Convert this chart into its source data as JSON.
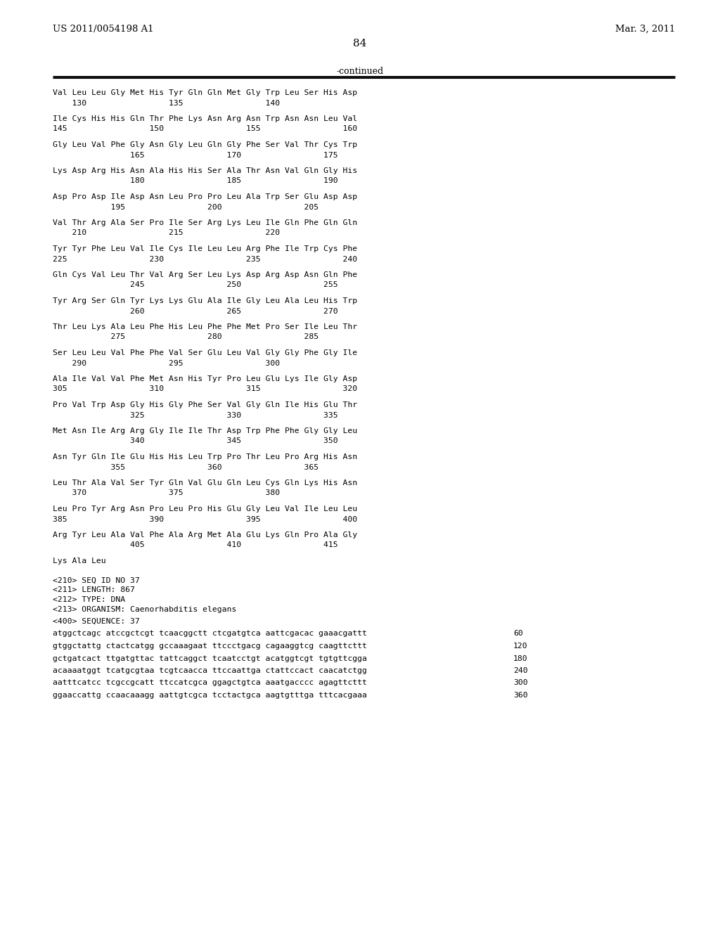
{
  "header_left": "US 2011/0054198 A1",
  "header_right": "Mar. 3, 2011",
  "page_number": "84",
  "continued_label": "-continued",
  "background_color": "#ffffff",
  "text_color": "#000000",
  "content_blocks": [
    {
      "seq": "Val Leu Leu Gly Met His Tyr Gln Gln Met Gly Trp Leu Ser His Asp",
      "num": "    130                 135                 140"
    },
    {
      "seq": "Ile Cys His His Gln Thr Phe Lys Asn Arg Asn Trp Asn Asn Leu Val",
      "num": "145                 150                 155                 160"
    },
    {
      "seq": "Gly Leu Val Phe Gly Asn Gly Leu Gln Gly Phe Ser Val Thr Cys Trp",
      "num": "                165                 170                 175"
    },
    {
      "seq": "Lys Asp Arg His Asn Ala His His Ser Ala Thr Asn Val Gln Gly His",
      "num": "                180                 185                 190"
    },
    {
      "seq": "Asp Pro Asp Ile Asp Asn Leu Pro Pro Leu Ala Trp Ser Glu Asp Asp",
      "num": "            195                 200                 205"
    },
    {
      "seq": "Val Thr Arg Ala Ser Pro Ile Ser Arg Lys Leu Ile Gln Phe Gln Gln",
      "num": "    210                 215                 220"
    },
    {
      "seq": "Tyr Tyr Phe Leu Val Ile Cys Ile Leu Leu Arg Phe Ile Trp Cys Phe",
      "num": "225                 230                 235                 240"
    },
    {
      "seq": "Gln Cys Val Leu Thr Val Arg Ser Leu Lys Asp Arg Asp Asn Gln Phe",
      "num": "                245                 250                 255"
    },
    {
      "seq": "Tyr Arg Ser Gln Tyr Lys Lys Glu Ala Ile Gly Leu Ala Leu His Trp",
      "num": "                260                 265                 270"
    },
    {
      "seq": "Thr Leu Lys Ala Leu Phe His Leu Phe Phe Met Pro Ser Ile Leu Thr",
      "num": "            275                 280                 285"
    },
    {
      "seq": "Ser Leu Leu Val Phe Phe Val Ser Glu Leu Val Gly Gly Phe Gly Ile",
      "num": "    290                 295                 300"
    },
    {
      "seq": "Ala Ile Val Val Phe Met Asn His Tyr Pro Leu Glu Lys Ile Gly Asp",
      "num": "305                 310                 315                 320"
    },
    {
      "seq": "Pro Val Trp Asp Gly His Gly Phe Ser Val Gly Gln Ile His Glu Thr",
      "num": "                325                 330                 335"
    },
    {
      "seq": "Met Asn Ile Arg Arg Gly Ile Ile Thr Asp Trp Phe Phe Gly Gly Leu",
      "num": "                340                 345                 350"
    },
    {
      "seq": "Asn Tyr Gln Ile Glu His His Leu Trp Pro Thr Leu Pro Arg His Asn",
      "num": "            355                 360                 365"
    },
    {
      "seq": "Leu Thr Ala Val Ser Tyr Gln Val Glu Gln Leu Cys Gln Lys His Asn",
      "num": "    370                 375                 380"
    },
    {
      "seq": "Leu Pro Tyr Arg Asn Pro Leu Pro His Glu Gly Leu Val Ile Leu Leu",
      "num": "385                 390                 395                 400"
    },
    {
      "seq": "Arg Tyr Leu Ala Val Phe Ala Arg Met Ala Glu Lys Gln Pro Ala Gly",
      "num": "                405                 410                 415"
    }
  ],
  "last_seq": "Lys Ala Leu",
  "meta_lines": [
    "<210> SEQ ID NO 37",
    "<211> LENGTH: 867",
    "<212> TYPE: DNA",
    "<213> ORGANISM: Caenorhabditis elegans"
  ],
  "seq_label": "<400> SEQUENCE: 37",
  "dna_lines": [
    {
      "seq": "atggctcagc atccgctcgt tcaacggctt ctcgatgtca aattcgacac gaaacgattt",
      "num": "60"
    },
    {
      "seq": "gtggctattg ctactcatgg gccaaagaat ttccctgacg cagaaggtcg caagttcttt",
      "num": "120"
    },
    {
      "seq": "gctgatcact ttgatgttac tattcaggct tcaatcctgt acatggtcgt tgtgttcgga",
      "num": "180"
    },
    {
      "seq": "acaaaatggt tcatgcgtaa tcgtcaacca ttccaattga ctattccact caacatctgg",
      "num": "240"
    },
    {
      "seq": "aatttcatcc tcgccgcatt ttccatcgca ggagctgtca aaatgacccc agagttcttt",
      "num": "300"
    },
    {
      "seq": "ggaaccattg ccaacaaagg aattgtcgca tcctactgca aagtgtttga tttcacgaaa",
      "num": "360"
    }
  ]
}
